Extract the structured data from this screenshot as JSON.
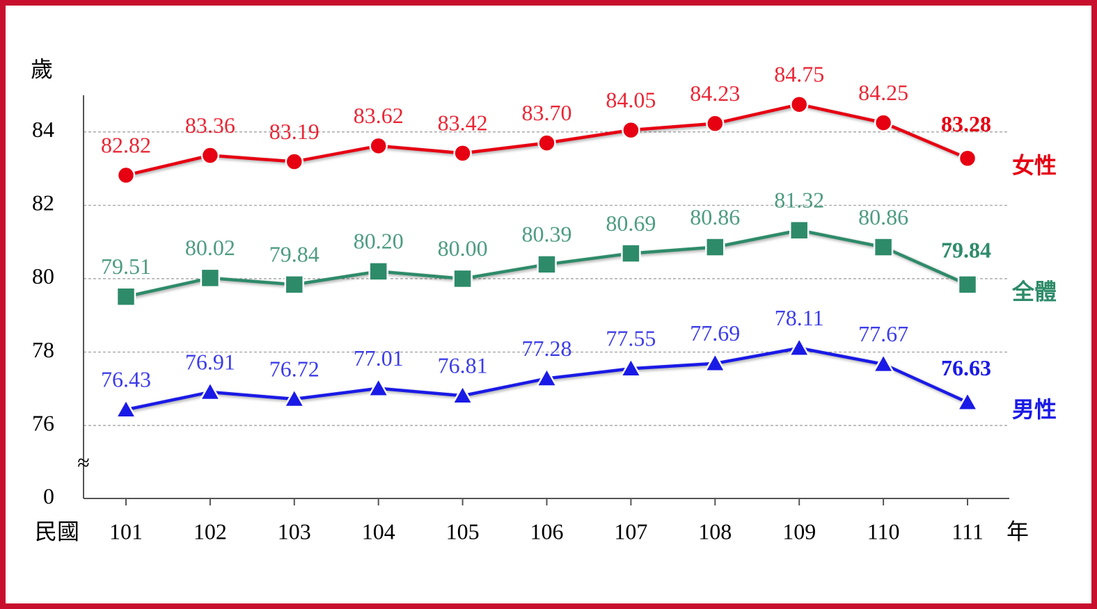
{
  "chart_data": {
    "type": "line",
    "y_label": "歲",
    "x_prefix": "民國",
    "x_suffix": "年",
    "ybreak_label": "≈",
    "categories": [
      "101",
      "102",
      "103",
      "104",
      "105",
      "106",
      "107",
      "108",
      "109",
      "110",
      "111"
    ],
    "series": [
      {
        "name": "女性",
        "color": "#e60012",
        "marker": "circle",
        "values": [
          82.82,
          83.36,
          83.19,
          83.62,
          83.42,
          83.7,
          84.05,
          84.23,
          84.75,
          84.25,
          83.28
        ],
        "value_labels": [
          "82.82",
          "83.36",
          "83.19",
          "83.62",
          "83.42",
          "83.70",
          "84.05",
          "84.23",
          "84.75",
          "84.25",
          "83.28"
        ]
      },
      {
        "name": "全體",
        "color": "#2e8b6a",
        "marker": "square",
        "values": [
          79.51,
          80.02,
          79.84,
          80.2,
          80.0,
          80.39,
          80.69,
          80.86,
          81.32,
          80.86,
          79.84
        ],
        "value_labels": [
          "79.51",
          "80.02",
          "79.84",
          "80.20",
          "80.00",
          "80.39",
          "80.69",
          "80.86",
          "81.32",
          "80.86",
          "79.84"
        ]
      },
      {
        "name": "男性",
        "color": "#1a1ae6",
        "marker": "triangle",
        "values": [
          76.43,
          76.91,
          76.72,
          77.01,
          76.81,
          77.28,
          77.55,
          77.69,
          78.11,
          77.67,
          76.63
        ],
        "value_labels": [
          "76.43",
          "76.91",
          "76.72",
          "77.01",
          "76.81",
          "77.28",
          "77.55",
          "77.69",
          "78.11",
          "77.67",
          "76.63"
        ]
      }
    ],
    "ylim": [
      0,
      85
    ],
    "yticks": [
      0,
      76,
      78,
      80,
      82,
      84
    ],
    "grid": true,
    "axis_break": true,
    "legend": "right"
  }
}
